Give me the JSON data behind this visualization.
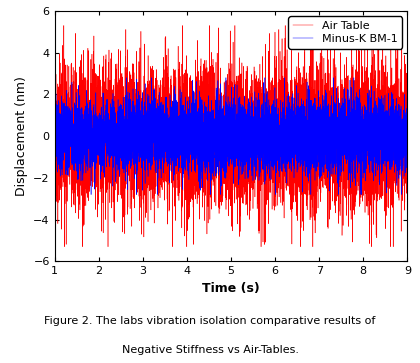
{
  "title": "",
  "xlabel": "Time (s)",
  "ylabel": "Displacement (nm)",
  "xlim": [
    1,
    9
  ],
  "ylim": [
    -6,
    6
  ],
  "xticks": [
    1,
    2,
    3,
    4,
    5,
    6,
    7,
    8,
    9
  ],
  "yticks": [
    -6,
    -4,
    -2,
    0,
    2,
    4,
    6
  ],
  "legend": [
    "Air Table",
    "Minus-K BM-1"
  ],
  "line_colors": [
    "red",
    "blue"
  ],
  "caption_line1": "Figure 2. The labs vibration isolation comparative results of",
  "caption_line2": "Negative Stiffness vs Air-Tables.",
  "air_table_std": 1.6,
  "air_table_clip": 5.3,
  "minus_k_std": 0.85,
  "minus_k_clip": 2.8,
  "n_points": 8000,
  "seed": 42,
  "figsize": [
    4.2,
    3.63
  ],
  "dpi": 100,
  "background_color": "#ffffff",
  "caption_fontsize": 8.0,
  "axis_label_fontsize": 9,
  "tick_label_fontsize": 8,
  "legend_fontsize": 8
}
